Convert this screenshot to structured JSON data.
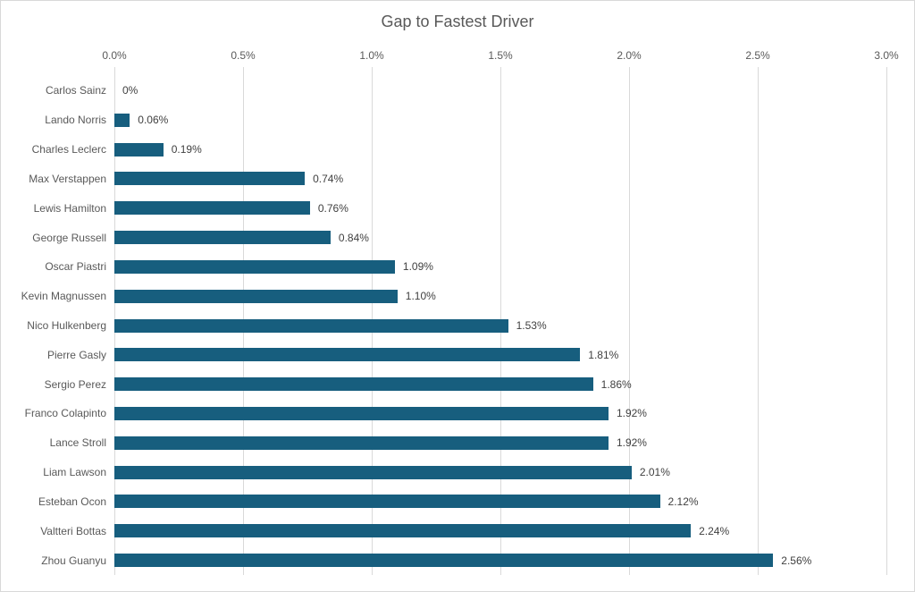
{
  "chart_data": {
    "type": "bar",
    "orientation": "horizontal",
    "title": "Gap to Fastest Driver",
    "xlabel": "",
    "ylabel": "",
    "xlim": [
      0,
      3
    ],
    "x_tick_values": [
      0,
      0.5,
      1,
      1.5,
      2,
      2.5,
      3
    ],
    "x_tick_labels": [
      "0.0%",
      "0.5%",
      "1.0%",
      "1.5%",
      "2.0%",
      "2.5%",
      "3.0%"
    ],
    "grid": true,
    "legend": false,
    "axis_position": "top",
    "categories": [
      "Carlos Sainz",
      "Lando Norris",
      "Charles Leclerc",
      "Max Verstappen",
      "Lewis Hamilton",
      "George Russell",
      "Oscar Piastri",
      "Kevin Magnussen",
      "Nico Hulkenberg",
      "Pierre Gasly",
      "Sergio Perez",
      "Franco Colapinto",
      "Lance Stroll",
      "Liam Lawson",
      "Esteban Ocon",
      "Valtteri Bottas",
      "Zhou Guanyu"
    ],
    "values": [
      0,
      0.06,
      0.19,
      0.74,
      0.76,
      0.84,
      1.09,
      1.1,
      1.53,
      1.81,
      1.86,
      1.92,
      1.92,
      2.01,
      2.12,
      2.24,
      2.56
    ],
    "value_labels": [
      "0%",
      "0.06%",
      "0.19%",
      "0.74%",
      "0.76%",
      "0.84%",
      "1.09%",
      "1.10%",
      "1.53%",
      "1.81%",
      "1.86%",
      "1.92%",
      "1.92%",
      "2.01%",
      "2.12%",
      "2.24%",
      "2.56%"
    ],
    "colors": {
      "bar": "#175e7e",
      "gridline": "#d9d9d9",
      "border": "#d9d9d9",
      "background": "#ffffff",
      "title_text": "#595959",
      "axis_text": "#595959",
      "category_text": "#595959",
      "value_text": "#404040"
    }
  }
}
